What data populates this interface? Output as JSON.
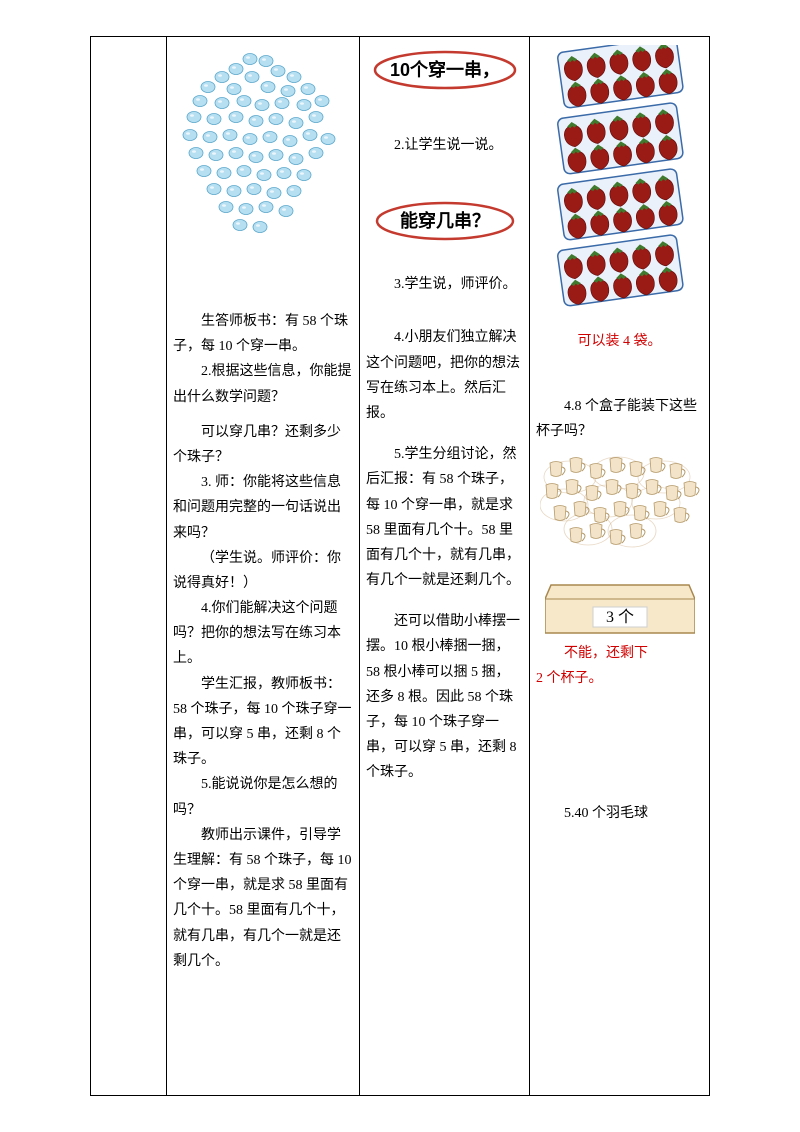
{
  "col2": {
    "p1": "生答师板书：有 58 个珠子，每 10 个穿一串。",
    "p2": "2.根据这些信息，你能提出什么数学问题？",
    "p3": "可以穿几串？还剩多少个珠子？",
    "p4": "3. 师：你能将这些信息和问题用完整的一句话说出来吗？",
    "p5": "（学生说。师评价：你说得真好！）",
    "p6": "4.你们能解决这个问题吗？把你的想法写在练习本上。",
    "p7": "学生汇报，教师板书：58 个珠子，每 10 个珠子穿一串，可以穿 5 串，还剩 8 个珠子。",
    "p8": "5.能说说你是怎么想的吗？",
    "p9": "教师出示课件，引导学生理解：有 58 个珠子，每 10 个穿一串，就是求 58 里面有几个十。58 里面有几个十，就有几串，有几个一就是还剩几个。"
  },
  "col3": {
    "bubble1": "10个穿一串，",
    "bubble2": "能穿几串？",
    "p1": "2.让学生说一说。",
    "p2": "3.学生说，师评价。",
    "p3": "4.小朋友们独立解决这个问题吧，把你的想法写在练习本上。然后汇报。",
    "p4": "5.学生分组讨论，然后汇报：有 58 个珠子，每 10 个穿一串，就是求 58 里面有几个十。58 里面有几个十，就有几串，有几个一就是还剩几个。",
    "p5": "还可以借助小棒摆一摆。10 根小棒捆一捆，58 根小棒可以捆 5 捆，还多 8 根。因此 58 个珠子，每 10 个珠子穿一串，可以穿 5 串，还剩 8 个珠子。"
  },
  "col4": {
    "ans1": "可以装 4 袋。",
    "q4": "4.8 个盒子能装下这些杯子吗？",
    "box_label": "3 个",
    "ans2a": "不能，还剩下",
    "ans2b": "2 个杯子。",
    "q5": "5.40 个羽毛球"
  },
  "style": {
    "bead_fill": "#b7dff2",
    "bead_stroke": "#5aa7cc",
    "bubble_stroke": "#c43a2e",
    "bubble_fill": "#ffffff",
    "straw_red": "#9a1a16",
    "pack_stroke": "#3a6aa8",
    "cup_fill": "#f3e4c9",
    "cup_stroke": "#b59a6a",
    "cup_ring": "#d2b28a",
    "box_fill": "#f6e8c8",
    "box_stroke": "#a8874f",
    "box_label_bg": "#ffffff"
  }
}
